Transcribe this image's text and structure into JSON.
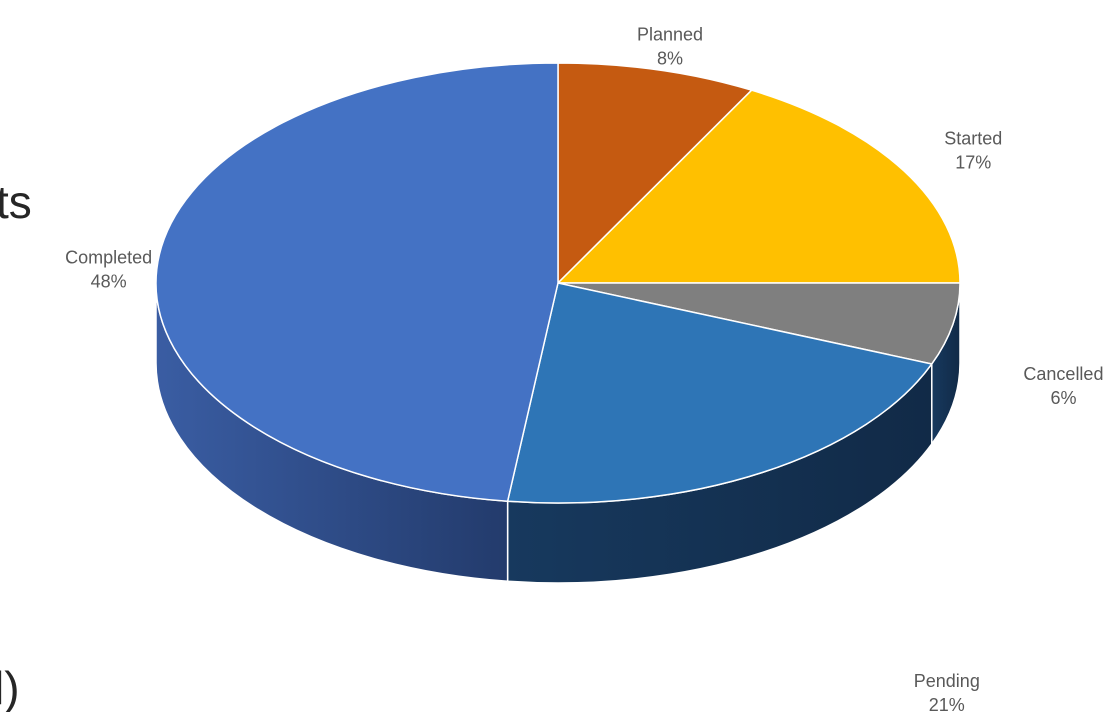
{
  "side_text": {
    "fragment_top": "ts",
    "fragment_bottom": "l)"
  },
  "chart_data": {
    "type": "pie",
    "style": "3d",
    "start_angle_deg": 90,
    "direction": "clockwise",
    "legend": "none",
    "slices": [
      {
        "label": "Planned",
        "value": 8,
        "display": "8%",
        "color": "#C55A11"
      },
      {
        "label": "Started",
        "value": 17,
        "display": "17%",
        "color": "#FFC000"
      },
      {
        "label": "Cancelled",
        "value": 6,
        "display": "6%",
        "color": "#7F7F7F"
      },
      {
        "label": "Pending",
        "value": 21,
        "display": "21%",
        "color": "#2E75B6"
      },
      {
        "label": "Completed",
        "value": 48,
        "display": "48%",
        "color": "#4472C4"
      }
    ]
  }
}
